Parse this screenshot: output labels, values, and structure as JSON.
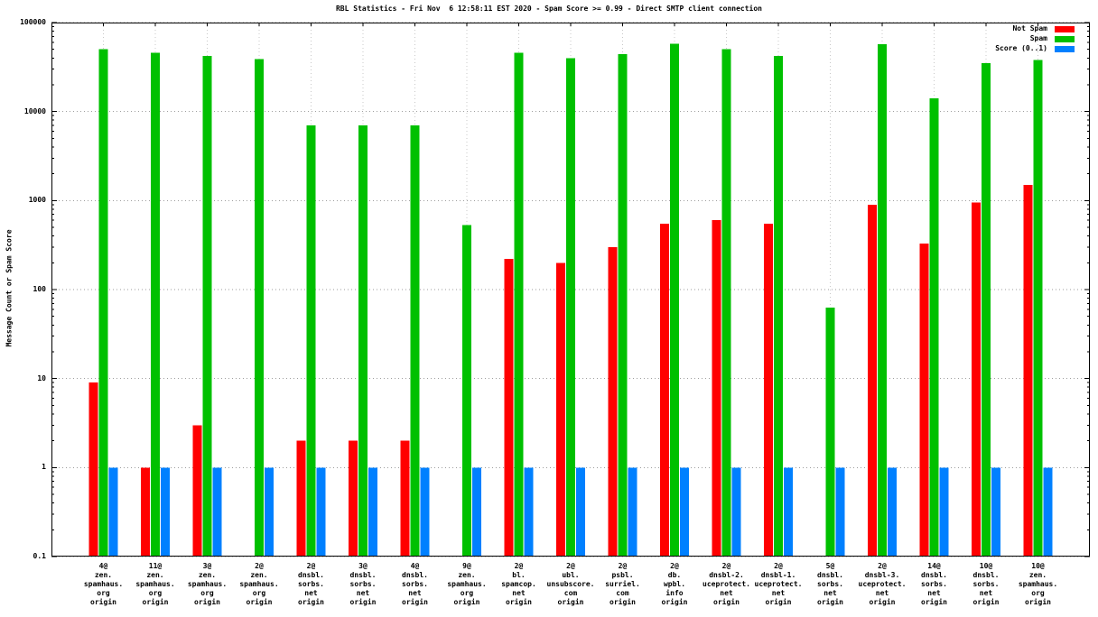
{
  "title": "RBL Statistics - Fri Nov  6 12:58:11 EST 2020 - Spam Score >= 0.99 - Direct SMTP client connection",
  "ylabel": "Message Count or Spam Score",
  "chart_data": {
    "type": "bar",
    "yscale": "log",
    "ylim": [
      0.1,
      100000
    ],
    "grid": true,
    "legend_position": "top-right",
    "yticks": [
      {
        "v": 100000,
        "label": "100000"
      },
      {
        "v": 10000,
        "label": "10000"
      },
      {
        "v": 1000,
        "label": "1000"
      },
      {
        "v": 100,
        "label": "100"
      },
      {
        "v": 10,
        "label": "10"
      },
      {
        "v": 1,
        "label": "1"
      },
      {
        "v": 0.1,
        "label": "0.1"
      }
    ],
    "categories": [
      [
        "4@",
        "zen.",
        "spamhaus.",
        "org",
        "origin"
      ],
      [
        "11@",
        "zen.",
        "spamhaus.",
        "org",
        "origin"
      ],
      [
        "3@",
        "zen.",
        "spamhaus.",
        "org",
        "origin"
      ],
      [
        "2@",
        "zen.",
        "spamhaus.",
        "org",
        "origin"
      ],
      [
        "2@",
        "dnsbl.",
        "sorbs.",
        "net",
        "origin"
      ],
      [
        "3@",
        "dnsbl.",
        "sorbs.",
        "net",
        "origin"
      ],
      [
        "4@",
        "dnsbl.",
        "sorbs.",
        "net",
        "origin"
      ],
      [
        "9@",
        "zen.",
        "spamhaus.",
        "org",
        "origin"
      ],
      [
        "2@",
        "bl.",
        "spamcop.",
        "net",
        "origin"
      ],
      [
        "2@",
        "ubl.",
        "unsubscore.",
        "com",
        "origin"
      ],
      [
        "2@",
        "psbl.",
        "surriel.",
        "com",
        "origin"
      ],
      [
        "2@",
        "db.",
        "wpbl.",
        "info",
        "origin"
      ],
      [
        "2@",
        "dnsbl-2.",
        "uceprotect.",
        "net",
        "origin"
      ],
      [
        "2@",
        "dnsbl-1.",
        "uceprotect.",
        "net",
        "origin"
      ],
      [
        "5@",
        "dnsbl.",
        "sorbs.",
        "net",
        "origin"
      ],
      [
        "2@",
        "dnsbl-3.",
        "uceprotect.",
        "net",
        "origin"
      ],
      [
        "14@",
        "dnsbl.",
        "sorbs.",
        "net",
        "origin"
      ],
      [
        "10@",
        "dnsbl.",
        "sorbs.",
        "net",
        "origin"
      ],
      [
        "10@",
        "zen.",
        "spamhaus.",
        "org",
        "origin"
      ]
    ],
    "series": [
      {
        "name": "Not Spam",
        "key": "not-spam",
        "color": "#ff0000",
        "values": [
          9,
          1,
          3,
          null,
          2,
          2,
          2,
          null,
          220,
          200,
          300,
          550,
          600,
          550,
          null,
          900,
          330,
          950,
          1500
        ]
      },
      {
        "name": "Spam",
        "key": "spam",
        "color": "#00c000",
        "values": [
          50000,
          46000,
          42000,
          39000,
          7000,
          7000,
          7000,
          530,
          46000,
          40000,
          44000,
          58000,
          50000,
          42000,
          63,
          57000,
          14000,
          35000,
          38000
        ]
      },
      {
        "name": "Score (0..1)",
        "key": "score",
        "color": "#0080ff",
        "values": [
          1,
          1,
          1,
          1,
          1,
          1,
          1,
          1,
          1,
          1,
          1,
          1,
          1,
          1,
          1,
          1,
          1,
          1,
          1
        ]
      }
    ]
  }
}
